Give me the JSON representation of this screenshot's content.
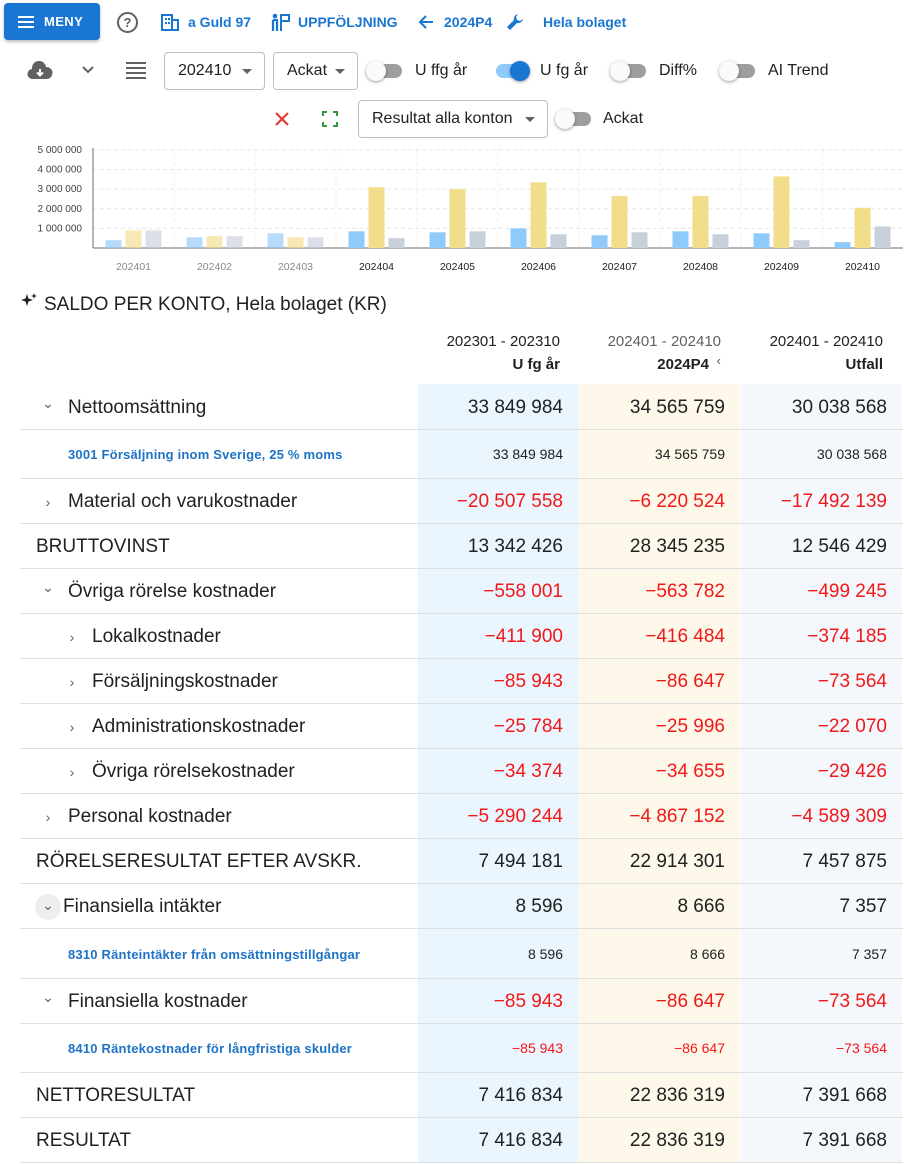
{
  "topbar": {
    "menu_label": "MENY",
    "company_label": "a Guld 97",
    "followup_label": "UPPFÖLJNING",
    "period_label": "2024P4",
    "scope_label": "Hela bolaget"
  },
  "toolbar": {
    "period_select": "202410",
    "mode_select": "Ackat",
    "report_select": "Resultat alla konton",
    "toggles": [
      {
        "label": "U ffg år",
        "on": false
      },
      {
        "label": "U fg år",
        "on": true
      },
      {
        "label": "Diff%",
        "on": false
      },
      {
        "label": "AI Trend",
        "on": false
      },
      {
        "label": "Ackat",
        "on": false
      }
    ]
  },
  "colors": {
    "accent": "#1976d2",
    "negative": "#f21818",
    "link": "#1e73c6",
    "col1_bg": "#eaf5fd",
    "col2_bg": "#fdf8ea",
    "col3_bg": "#f4f8fc"
  },
  "chart_data": {
    "type": "bar",
    "categories": [
      "202401",
      "202402",
      "202403",
      "202404",
      "202405",
      "202406",
      "202407",
      "202408",
      "202409",
      "202410"
    ],
    "active_categories": [
      "202404",
      "202405",
      "202406",
      "202407",
      "202408",
      "202409",
      "202410"
    ],
    "series": [
      {
        "color": "#90caf9",
        "values": [
          400000,
          550000,
          750000,
          850000,
          800000,
          1000000,
          650000,
          850000,
          750000,
          300000
        ]
      },
      {
        "color": "#f2dd8a",
        "values": [
          900000,
          600000,
          550000,
          3100000,
          3000000,
          3350000,
          2650000,
          2650000,
          3650000,
          2050000
        ]
      },
      {
        "color": "#c7d0db",
        "values": [
          900000,
          600000,
          550000,
          500000,
          850000,
          700000,
          800000,
          700000,
          400000,
          1100000
        ]
      }
    ],
    "yticks": [
      "1 000 000",
      "2 000 000",
      "3 000 000",
      "4 000 000",
      "5 000 000"
    ],
    "ylim": [
      0,
      5200000
    ],
    "grid": true
  },
  "table": {
    "title": "SALDO PER KONTO, Hela bolaget (KR)",
    "columns": [
      {
        "range": "202301 - 202310",
        "name": "U fg år"
      },
      {
        "range": "202401 - 202410",
        "name": "2024P4"
      },
      {
        "range": "202401 - 202410",
        "name": "Utfall"
      }
    ],
    "rows": [
      {
        "label": "Nettoomsättning",
        "kind": "group",
        "level": 0,
        "expanded": true,
        "values": [
          "33 849 984",
          "34 565 759",
          "30 038 568"
        ]
      },
      {
        "label": "3001 Försäljning inom Sverige, 25 % moms",
        "kind": "account",
        "values": [
          "33 849 984",
          "34 565 759",
          "30 038 568"
        ]
      },
      {
        "label": "Material och varukostnader",
        "kind": "group",
        "level": 0,
        "expanded": false,
        "values": [
          "−20 507 558",
          "−6 220 524",
          "−17 492 139"
        ]
      },
      {
        "label": "BRUTTOVINST",
        "kind": "total",
        "values": [
          "13 342 426",
          "28 345 235",
          "12 546 429"
        ]
      },
      {
        "label": "Övriga rörelse kostnader",
        "kind": "group",
        "level": 0,
        "expanded": true,
        "values": [
          "−558 001",
          "−563 782",
          "−499 245"
        ]
      },
      {
        "label": "Lokalkostnader",
        "kind": "group",
        "level": 1,
        "expanded": false,
        "values": [
          "−411 900",
          "−416 484",
          "−374 185"
        ]
      },
      {
        "label": "Försäljningskostnader",
        "kind": "group",
        "level": 1,
        "expanded": false,
        "values": [
          "−85 943",
          "−86 647",
          "−73 564"
        ]
      },
      {
        "label": "Administrationskostnader",
        "kind": "group",
        "level": 1,
        "expanded": false,
        "values": [
          "−25 784",
          "−25 996",
          "−22 070"
        ]
      },
      {
        "label": "Övriga rörelsekostnader",
        "kind": "group",
        "level": 1,
        "expanded": false,
        "values": [
          "−34 374",
          "−34 655",
          "−29 426"
        ]
      },
      {
        "label": "Personal kostnader",
        "kind": "group",
        "level": 0,
        "expanded": false,
        "values": [
          "−5 290 244",
          "−4 867 152",
          "−4 589 309"
        ]
      },
      {
        "label": "RÖRELSERESULTAT EFTER AVSKR.",
        "kind": "total",
        "values": [
          "7 494 181",
          "22 914 301",
          "7 457 875"
        ]
      },
      {
        "label": "Finansiella intäkter",
        "kind": "group",
        "level": 0,
        "expanded": true,
        "values": [
          "8 596",
          "8 666",
          "7 357"
        ]
      },
      {
        "label": "8310 Ränteintäkter från omsättningstillgångar",
        "kind": "account",
        "values": [
          "8 596",
          "8 666",
          "7 357"
        ]
      },
      {
        "label": "Finansiella kostnader",
        "kind": "group",
        "level": 0,
        "expanded": true,
        "values": [
          "−85 943",
          "−86 647",
          "−73 564"
        ]
      },
      {
        "label": "8410 Räntekostnader för långfristiga skulder",
        "kind": "account",
        "values": [
          "−85 943",
          "−86 647",
          "−73 564"
        ]
      },
      {
        "label": "NETTORESULTAT",
        "kind": "total",
        "values": [
          "7 416 834",
          "22 836 319",
          "7 391 668"
        ]
      },
      {
        "label": "RESULTAT",
        "kind": "total",
        "values": [
          "7 416 834",
          "22 836 319",
          "7 391 668"
        ]
      }
    ]
  }
}
